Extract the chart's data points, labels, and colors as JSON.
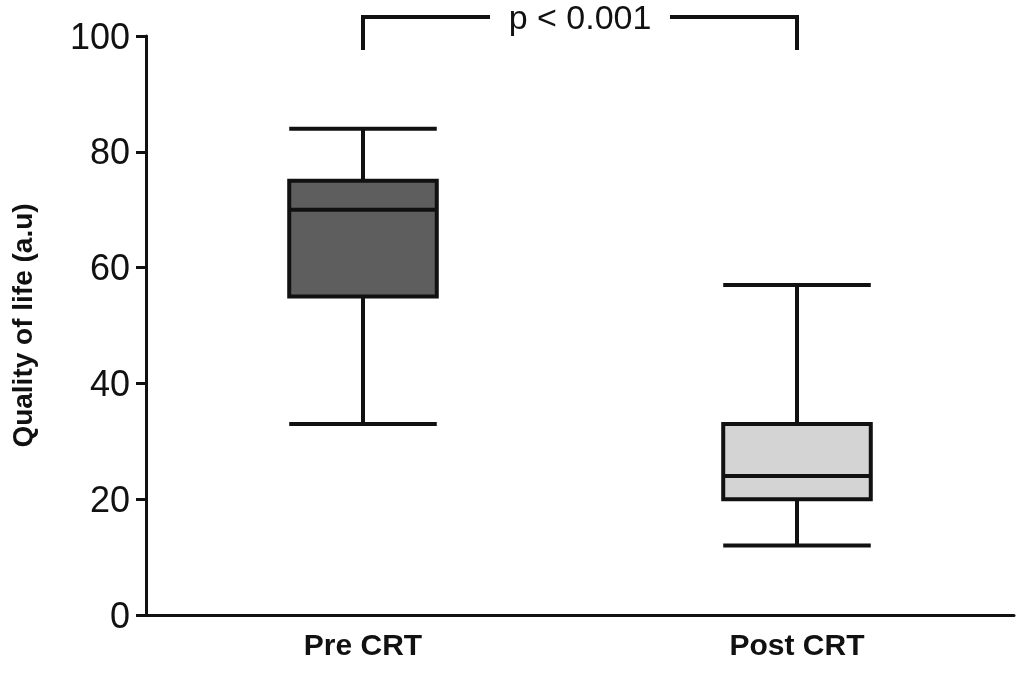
{
  "chart_data": {
    "type": "box",
    "ylabel": "Quality of life (a.u)",
    "categories": [
      "Pre CRT",
      "Post CRT"
    ],
    "boxes": [
      {
        "low": 33,
        "q1": 55,
        "median": 70,
        "q3": 75,
        "high": 84
      },
      {
        "low": 12,
        "q1": 20,
        "median": 24,
        "q3": 33,
        "high": 57
      }
    ],
    "colors": [
      "#5e5e5e",
      "#d4d4d4"
    ],
    "ylim": [
      0,
      100
    ],
    "yticks": [
      0,
      20,
      40,
      60,
      80,
      100
    ],
    "grid": false,
    "annotations": [
      "p < 0.001"
    ]
  }
}
